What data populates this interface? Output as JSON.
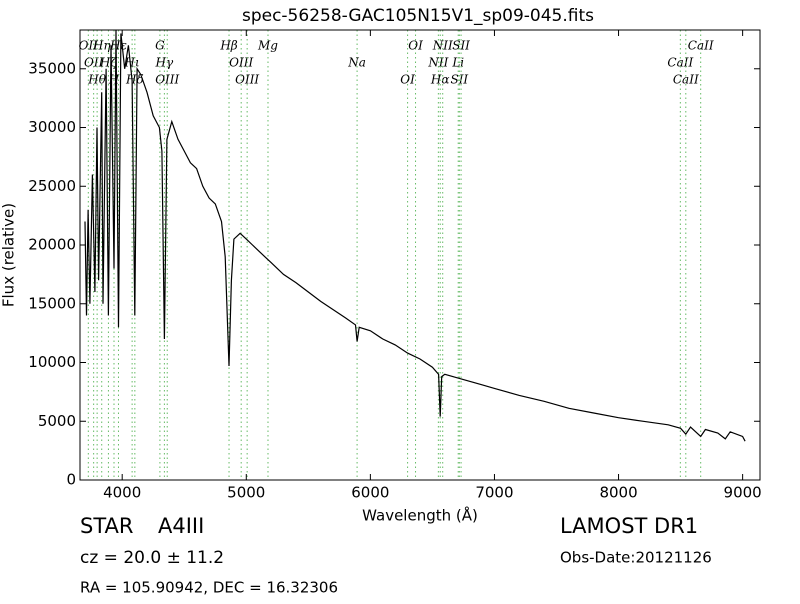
{
  "chart_data": {
    "type": "line",
    "title": "spec-56258-GAC105N15V1_sp09-045.fits",
    "x_label": "Wavelength (Å)",
    "y_label": "Flux (relative)",
    "xlim": [
      3660,
      9140
    ],
    "ylim": [
      0,
      38300
    ],
    "xticks": [
      4000,
      5000,
      6000,
      7000,
      8000,
      9000
    ],
    "yticks": [
      0,
      5000,
      10000,
      15000,
      20000,
      25000,
      30000,
      35000
    ],
    "series": [
      {
        "name": "Flux",
        "color": "#000000",
        "x": [
          3700,
          3712,
          3725,
          3740,
          3760,
          3780,
          3797,
          3810,
          3835,
          3845,
          3870,
          3889,
          3910,
          3934,
          3950,
          3970,
          3990,
          4020,
          4050,
          4080,
          4102,
          4120,
          4150,
          4200,
          4250,
          4300,
          4320,
          4340,
          4360,
          4400,
          4450,
          4500,
          4550,
          4600,
          4650,
          4700,
          4750,
          4800,
          4830,
          4861,
          4880,
          4900,
          4950,
          5000,
          5050,
          5100,
          5150,
          5200,
          5300,
          5400,
          5500,
          5600,
          5700,
          5800,
          5880,
          5893,
          5910,
          6000,
          6100,
          6200,
          6300,
          6400,
          6500,
          6550,
          6563,
          6575,
          6600,
          6700,
          6800,
          6900,
          7000,
          7200,
          7400,
          7600,
          7800,
          8000,
          8200,
          8400,
          8500,
          8542,
          8580,
          8662,
          8700,
          8800,
          8860,
          8900,
          9000,
          9020
        ],
        "values": [
          22000,
          14000,
          23000,
          15000,
          26000,
          16000,
          30000,
          17000,
          33000,
          15000,
          35000,
          14000,
          37000,
          18000,
          38300,
          13000,
          38000,
          35000,
          37000,
          34000,
          14000,
          35000,
          34500,
          33000,
          31000,
          30000,
          28000,
          12000,
          29000,
          30500,
          29000,
          28000,
          27000,
          26500,
          25000,
          24000,
          23500,
          22000,
          19000,
          9700,
          17000,
          20500,
          21000,
          20500,
          20000,
          19500,
          19000,
          18500,
          17500,
          16800,
          16000,
          15200,
          14500,
          13800,
          13200,
          11800,
          13000,
          12700,
          12000,
          11500,
          10800,
          10300,
          9600,
          9000,
          5400,
          8800,
          9000,
          8700,
          8400,
          8100,
          7800,
          7200,
          6700,
          6100,
          5700,
          5300,
          5000,
          4700,
          4400,
          3900,
          4500,
          3700,
          4300,
          4000,
          3500,
          4100,
          3700,
          3300
        ]
      }
    ],
    "line_color": "#66bb66",
    "spectral_lines": [
      {
        "wavelength": 3727,
        "label": "OII"
      },
      {
        "wavelength": 3770,
        "label": "OII"
      },
      {
        "wavelength": 3798,
        "label": "Hθ"
      },
      {
        "wavelength": 3835,
        "label": "Hη"
      },
      {
        "wavelength": 3889,
        "label": "Hζ"
      },
      {
        "wavelength": 3934,
        "label": "H"
      },
      {
        "wavelength": 3970,
        "label": "Hε"
      },
      {
        "wavelength": 4080,
        "label": "Hι"
      },
      {
        "wavelength": 4102,
        "label": "Hδ"
      },
      {
        "wavelength": 4304,
        "label": "G"
      },
      {
        "wavelength": 4340,
        "label": "Hγ"
      },
      {
        "wavelength": 4363,
        "label": "OIII"
      },
      {
        "wavelength": 4861,
        "label": "Hβ"
      },
      {
        "wavelength": 4959,
        "label": "OIII"
      },
      {
        "wavelength": 5007,
        "label": "OIII"
      },
      {
        "wavelength": 5175,
        "label": "Mg"
      },
      {
        "wavelength": 5893,
        "label": "Na"
      },
      {
        "wavelength": 6300,
        "label": "OI"
      },
      {
        "wavelength": 6364,
        "label": "OI"
      },
      {
        "wavelength": 6548,
        "label": "NII"
      },
      {
        "wavelength": 6563,
        "label": "Hα"
      },
      {
        "wavelength": 6583,
        "label": "NII"
      },
      {
        "wavelength": 6708,
        "label": "Li"
      },
      {
        "wavelength": 6717,
        "label": "SII"
      },
      {
        "wavelength": 6731,
        "label": "SII"
      },
      {
        "wavelength": 8498,
        "label": "CaII"
      },
      {
        "wavelength": 8542,
        "label": "CaII"
      },
      {
        "wavelength": 8662,
        "label": "CaII"
      }
    ],
    "object_class": "STAR",
    "subclass": "A4III",
    "survey": "LAMOST DR1",
    "redshift_text": "cz = 20.0 ± 11.2",
    "obs_date": "Obs-Date:20121126",
    "coords": "RA = 105.90942, DEC = 16.32306"
  }
}
